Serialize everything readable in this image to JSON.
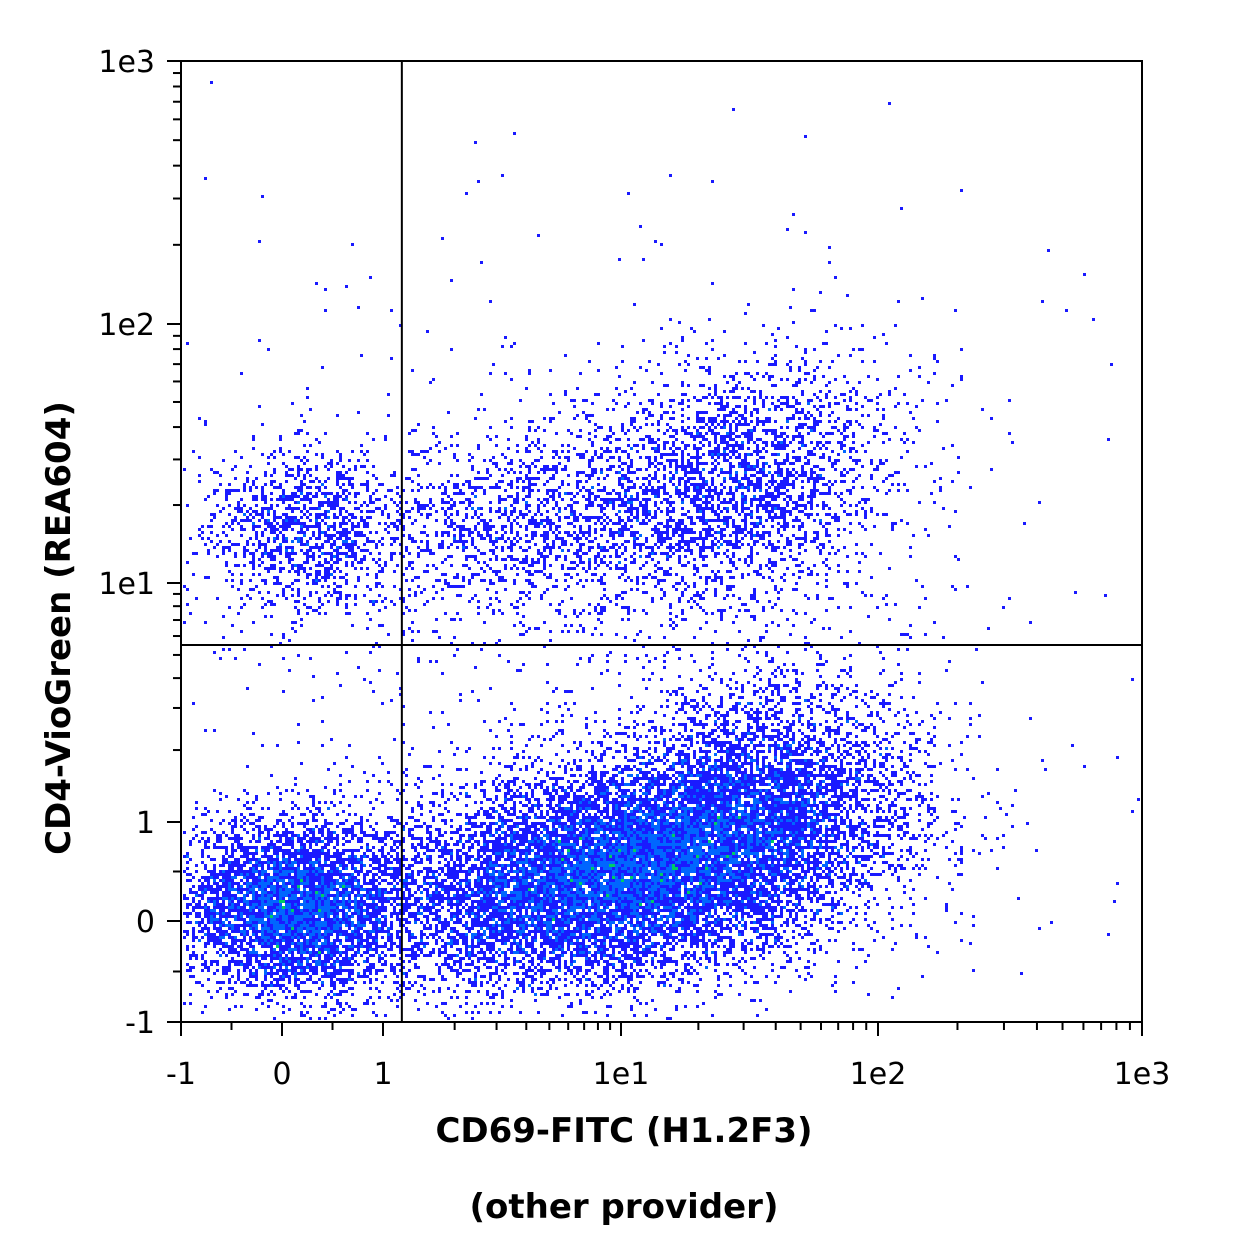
{
  "chart_data": {
    "type": "scatter",
    "subtype": "flow-cytometry-density-dot-plot",
    "xlabel": "CD69-FITC (H1.2F3)",
    "xlabel_note": "(other provider)",
    "ylabel": "CD4-VioGreen (REA604)",
    "x_scale": "biexponential",
    "y_scale": "biexponential",
    "xlim": [
      -1,
      1000
    ],
    "ylim": [
      -1,
      1000
    ],
    "x_ticks": [
      {
        "value": -1,
        "label": "-1"
      },
      {
        "value": 0,
        "label": "0"
      },
      {
        "value": 1,
        "label": "1"
      },
      {
        "value": 10,
        "label": "1e1"
      },
      {
        "value": 100,
        "label": "1e2"
      },
      {
        "value": 1000,
        "label": "1e3"
      }
    ],
    "y_ticks": [
      {
        "value": -1,
        "label": "-1"
      },
      {
        "value": 0,
        "label": "0"
      },
      {
        "value": 1,
        "label": "1"
      },
      {
        "value": 10,
        "label": "1e1"
      },
      {
        "value": 100,
        "label": "1e2"
      },
      {
        "value": 1000,
        "label": "1e3"
      }
    ],
    "quadrant_gate": {
      "x": 1.2,
      "y": 5.5
    },
    "grid": false,
    "legend": "none",
    "density_colors": [
      "#1a1aff",
      "#0066ff",
      "#00cc66",
      "#66ff00",
      "#ccff00",
      "#ff3300"
    ],
    "populations": [
      {
        "name": "CD4-negative CD69-low",
        "center_x": 0.2,
        "center_y": 0.3,
        "density": "medium"
      },
      {
        "name": "CD4-negative CD69-positive",
        "center_x": 10,
        "center_y": 0.5,
        "density": "high"
      },
      {
        "name": "CD4-positive CD69-low",
        "center_x": 0.3,
        "center_y": 15,
        "density": "low"
      },
      {
        "name": "CD4-positive CD69-positive",
        "center_x": 15,
        "center_y": 20,
        "density": "medium"
      }
    ]
  }
}
